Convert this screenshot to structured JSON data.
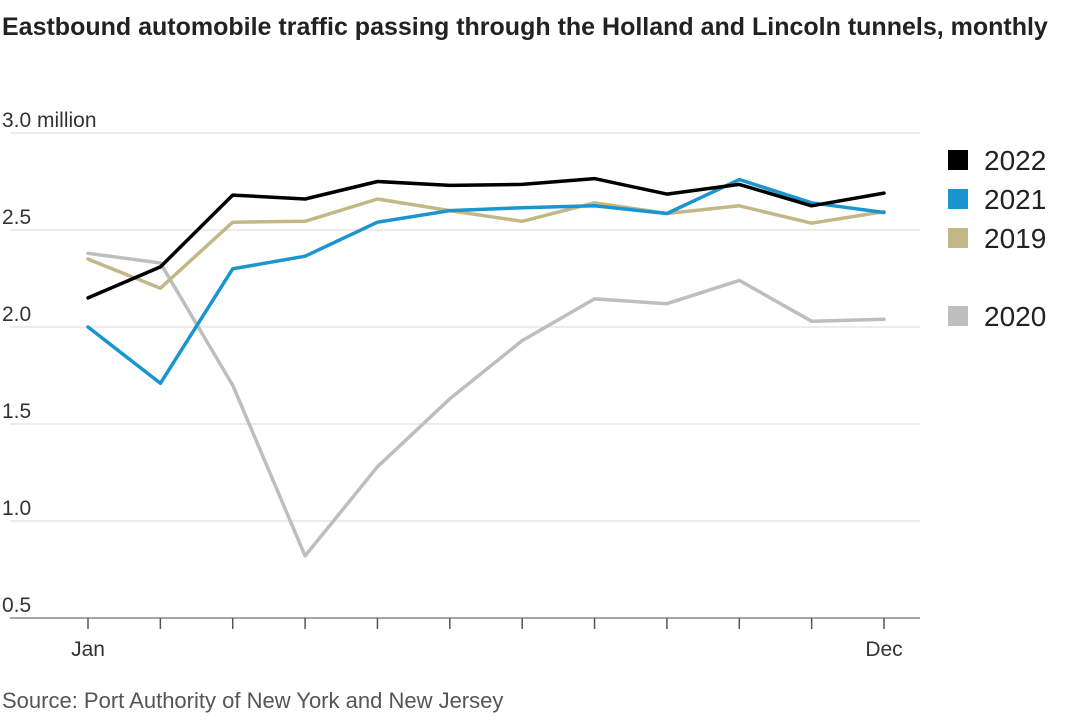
{
  "chart_data": {
    "type": "line",
    "title": "Eastbound automobile traffic passing through the Holland and Lincoln tunnels, monthly",
    "y_unit_label": "million",
    "ylim": [
      0.5,
      3.0
    ],
    "yticks": [
      0.5,
      1.0,
      1.5,
      2.0,
      2.5,
      3.0
    ],
    "ytick_labels": [
      "0.5",
      "1.0",
      "1.5",
      "2.0",
      "2.5",
      "3.0 million"
    ],
    "x": [
      1,
      2,
      3,
      4,
      5,
      6,
      7,
      8,
      9,
      10,
      11,
      12
    ],
    "x_tick_labels": {
      "1": "Jan",
      "12": "Dec"
    },
    "grid": "horizontal",
    "legend_position": "right",
    "series": [
      {
        "name": "2022",
        "color": "#000000",
        "values": [
          2.15,
          2.31,
          2.68,
          2.66,
          2.75,
          2.73,
          2.735,
          2.765,
          2.685,
          2.735,
          2.625,
          2.69
        ]
      },
      {
        "name": "2021",
        "color": "#1a95cf",
        "values": [
          2.0,
          1.71,
          2.3,
          2.365,
          2.54,
          2.6,
          2.615,
          2.625,
          2.585,
          2.76,
          2.64,
          2.59
        ]
      },
      {
        "name": "2019",
        "color": "#c2b887",
        "values": [
          2.35,
          2.2,
          2.54,
          2.545,
          2.66,
          2.6,
          2.545,
          2.64,
          2.585,
          2.625,
          2.535,
          2.595
        ]
      },
      {
        "name": "2020",
        "color": "#bebebe",
        "values": [
          2.38,
          2.33,
          1.7,
          0.82,
          1.28,
          1.63,
          1.93,
          2.145,
          2.12,
          2.24,
          2.03,
          2.04
        ]
      }
    ],
    "legend_order": [
      "2022",
      "2021",
      "2019",
      "2020"
    ],
    "source": "Source: Port Authority of New York and New Jersey"
  }
}
